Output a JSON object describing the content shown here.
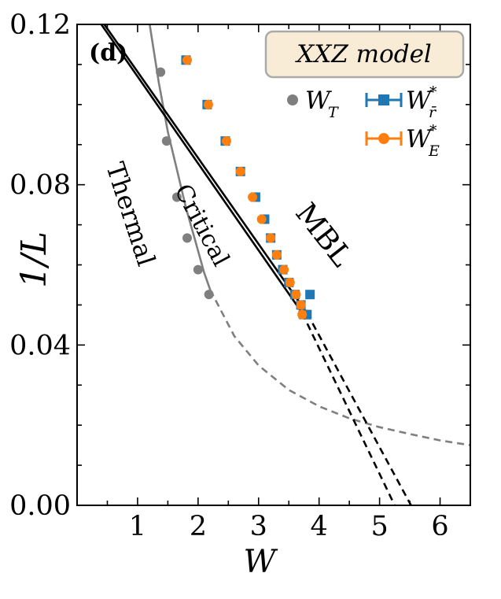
{
  "chart_data": {
    "type": "scatter",
    "panel_label": "(d)",
    "title": "XXZ model",
    "xlabel": "W",
    "ylabel": "1/L",
    "xlim": [
      0,
      6.5
    ],
    "ylim": [
      0,
      0.12
    ],
    "x_ticks": [
      {
        "value": 1,
        "label": "1"
      },
      {
        "value": 2,
        "label": "2"
      },
      {
        "value": 3,
        "label": "3"
      },
      {
        "value": 4,
        "label": "4"
      },
      {
        "value": 5,
        "label": "5"
      },
      {
        "value": 6,
        "label": "6"
      }
    ],
    "y_ticks": [
      {
        "value": 0.0,
        "label": "0.00"
      },
      {
        "value": 0.04,
        "label": "0.04"
      },
      {
        "value": 0.08,
        "label": "0.08"
      },
      {
        "value": 0.12,
        "label": "0.12"
      }
    ],
    "regions": [
      {
        "label": "Thermal",
        "x": 0.75,
        "y": 0.072,
        "rotate": 72,
        "size": 32
      },
      {
        "label": "Critical",
        "x": 1.95,
        "y": 0.069,
        "rotate": 62,
        "size": 30
      },
      {
        "label": "MBL",
        "x": 3.95,
        "y": 0.066,
        "rotate": 52,
        "size": 37
      }
    ],
    "legend": {
      "position": "top-right",
      "entries": [
        {
          "name": "W",
          "sub": "T",
          "sup": "",
          "bar": false
        },
        {
          "name": "W",
          "sub": "r̄",
          "sup": "*",
          "bar": true
        },
        {
          "name": "W",
          "sub": "E",
          "sup": "*",
          "bar": true
        }
      ]
    },
    "colors": {
      "gray": "#7f7f7f",
      "blue": "#1f77b4",
      "orange": "#ff7f0e",
      "black": "#000000",
      "legend_box": "#f9ecd6"
    },
    "series": [
      {
        "name": "W_T",
        "color": "#7f7f7f",
        "marker": "circle",
        "x": [
          1.38,
          1.48,
          1.65,
          1.82,
          2.0,
          2.18
        ],
        "y": [
          0.1081,
          0.0909,
          0.0769,
          0.0667,
          0.0588,
          0.0526
        ]
      },
      {
        "name": "W_r*",
        "color": "#1f77b4",
        "marker": "square",
        "x": [
          1.8,
          2.15,
          2.45,
          2.7,
          2.95,
          3.1,
          3.2,
          3.3,
          3.4,
          3.5,
          3.6,
          3.7,
          3.75,
          3.85,
          3.8
        ],
        "y": [
          0.1111,
          0.1,
          0.0909,
          0.0833,
          0.0769,
          0.0714,
          0.0667,
          0.0625,
          0.0588,
          0.0556,
          0.0526,
          0.05,
          0.0476,
          0.0526,
          0.0476
        ],
        "xerr": [
          0.0,
          0.0,
          0.0,
          0.0,
          0.0,
          0.0,
          0.0,
          0.0,
          0.0,
          0.0,
          0.04,
          0.04,
          0.05,
          0.05,
          0.05
        ]
      },
      {
        "name": "W_E*",
        "color": "#ff7f0e",
        "marker": "circle",
        "x": [
          1.82,
          2.17,
          2.47,
          2.7,
          2.9,
          3.05,
          3.2,
          3.3,
          3.42,
          3.52,
          3.62,
          3.7,
          3.72
        ],
        "y": [
          0.1111,
          0.1,
          0.0909,
          0.0833,
          0.0769,
          0.0714,
          0.0667,
          0.0625,
          0.0588,
          0.0556,
          0.0526,
          0.05,
          0.0476
        ],
        "xerr": [
          0.0,
          0.0,
          0.0,
          0.0,
          0.0,
          0.0,
          0.0,
          0.0,
          0.03,
          0.05,
          0.05,
          0.05,
          0.05
        ]
      }
    ],
    "fits": [
      {
        "name": "gray_solid",
        "color": "#7f7f7f",
        "dash": false,
        "x": [
          1.2,
          1.35,
          1.5,
          1.65,
          1.8,
          1.95,
          2.1,
          2.2
        ],
        "y": [
          0.12,
          0.1056,
          0.0932,
          0.0838,
          0.0742,
          0.0662,
          0.0581,
          0.0538
        ]
      },
      {
        "name": "gray_dashed",
        "color": "#7f7f7f",
        "dash": true,
        "x": [
          2.2,
          2.6,
          3.0,
          3.5,
          4.0,
          4.5,
          5.0,
          5.5,
          6.0,
          6.5
        ],
        "y": [
          0.0538,
          0.0422,
          0.0349,
          0.0288,
          0.0247,
          0.0217,
          0.0195,
          0.0178,
          0.0162,
          0.015
        ]
      },
      {
        "name": "fit_r_solid",
        "color": "#000000",
        "dash": false,
        "x": [
          0.45,
          3.8
        ],
        "y": [
          0.12,
          0.048
        ]
      },
      {
        "name": "fit_r_dashed",
        "color": "#000000",
        "dash": true,
        "x": [
          3.8,
          5.52
        ],
        "y": [
          0.048,
          0.0
        ]
      },
      {
        "name": "fit_e_solid",
        "color": "#000000",
        "dash": false,
        "x": [
          0.4,
          3.72
        ],
        "y": [
          0.12,
          0.048
        ]
      },
      {
        "name": "fit_e_dashed",
        "color": "#000000",
        "dash": true,
        "x": [
          3.72,
          5.25
        ],
        "y": [
          0.048,
          0.0
        ]
      }
    ]
  }
}
